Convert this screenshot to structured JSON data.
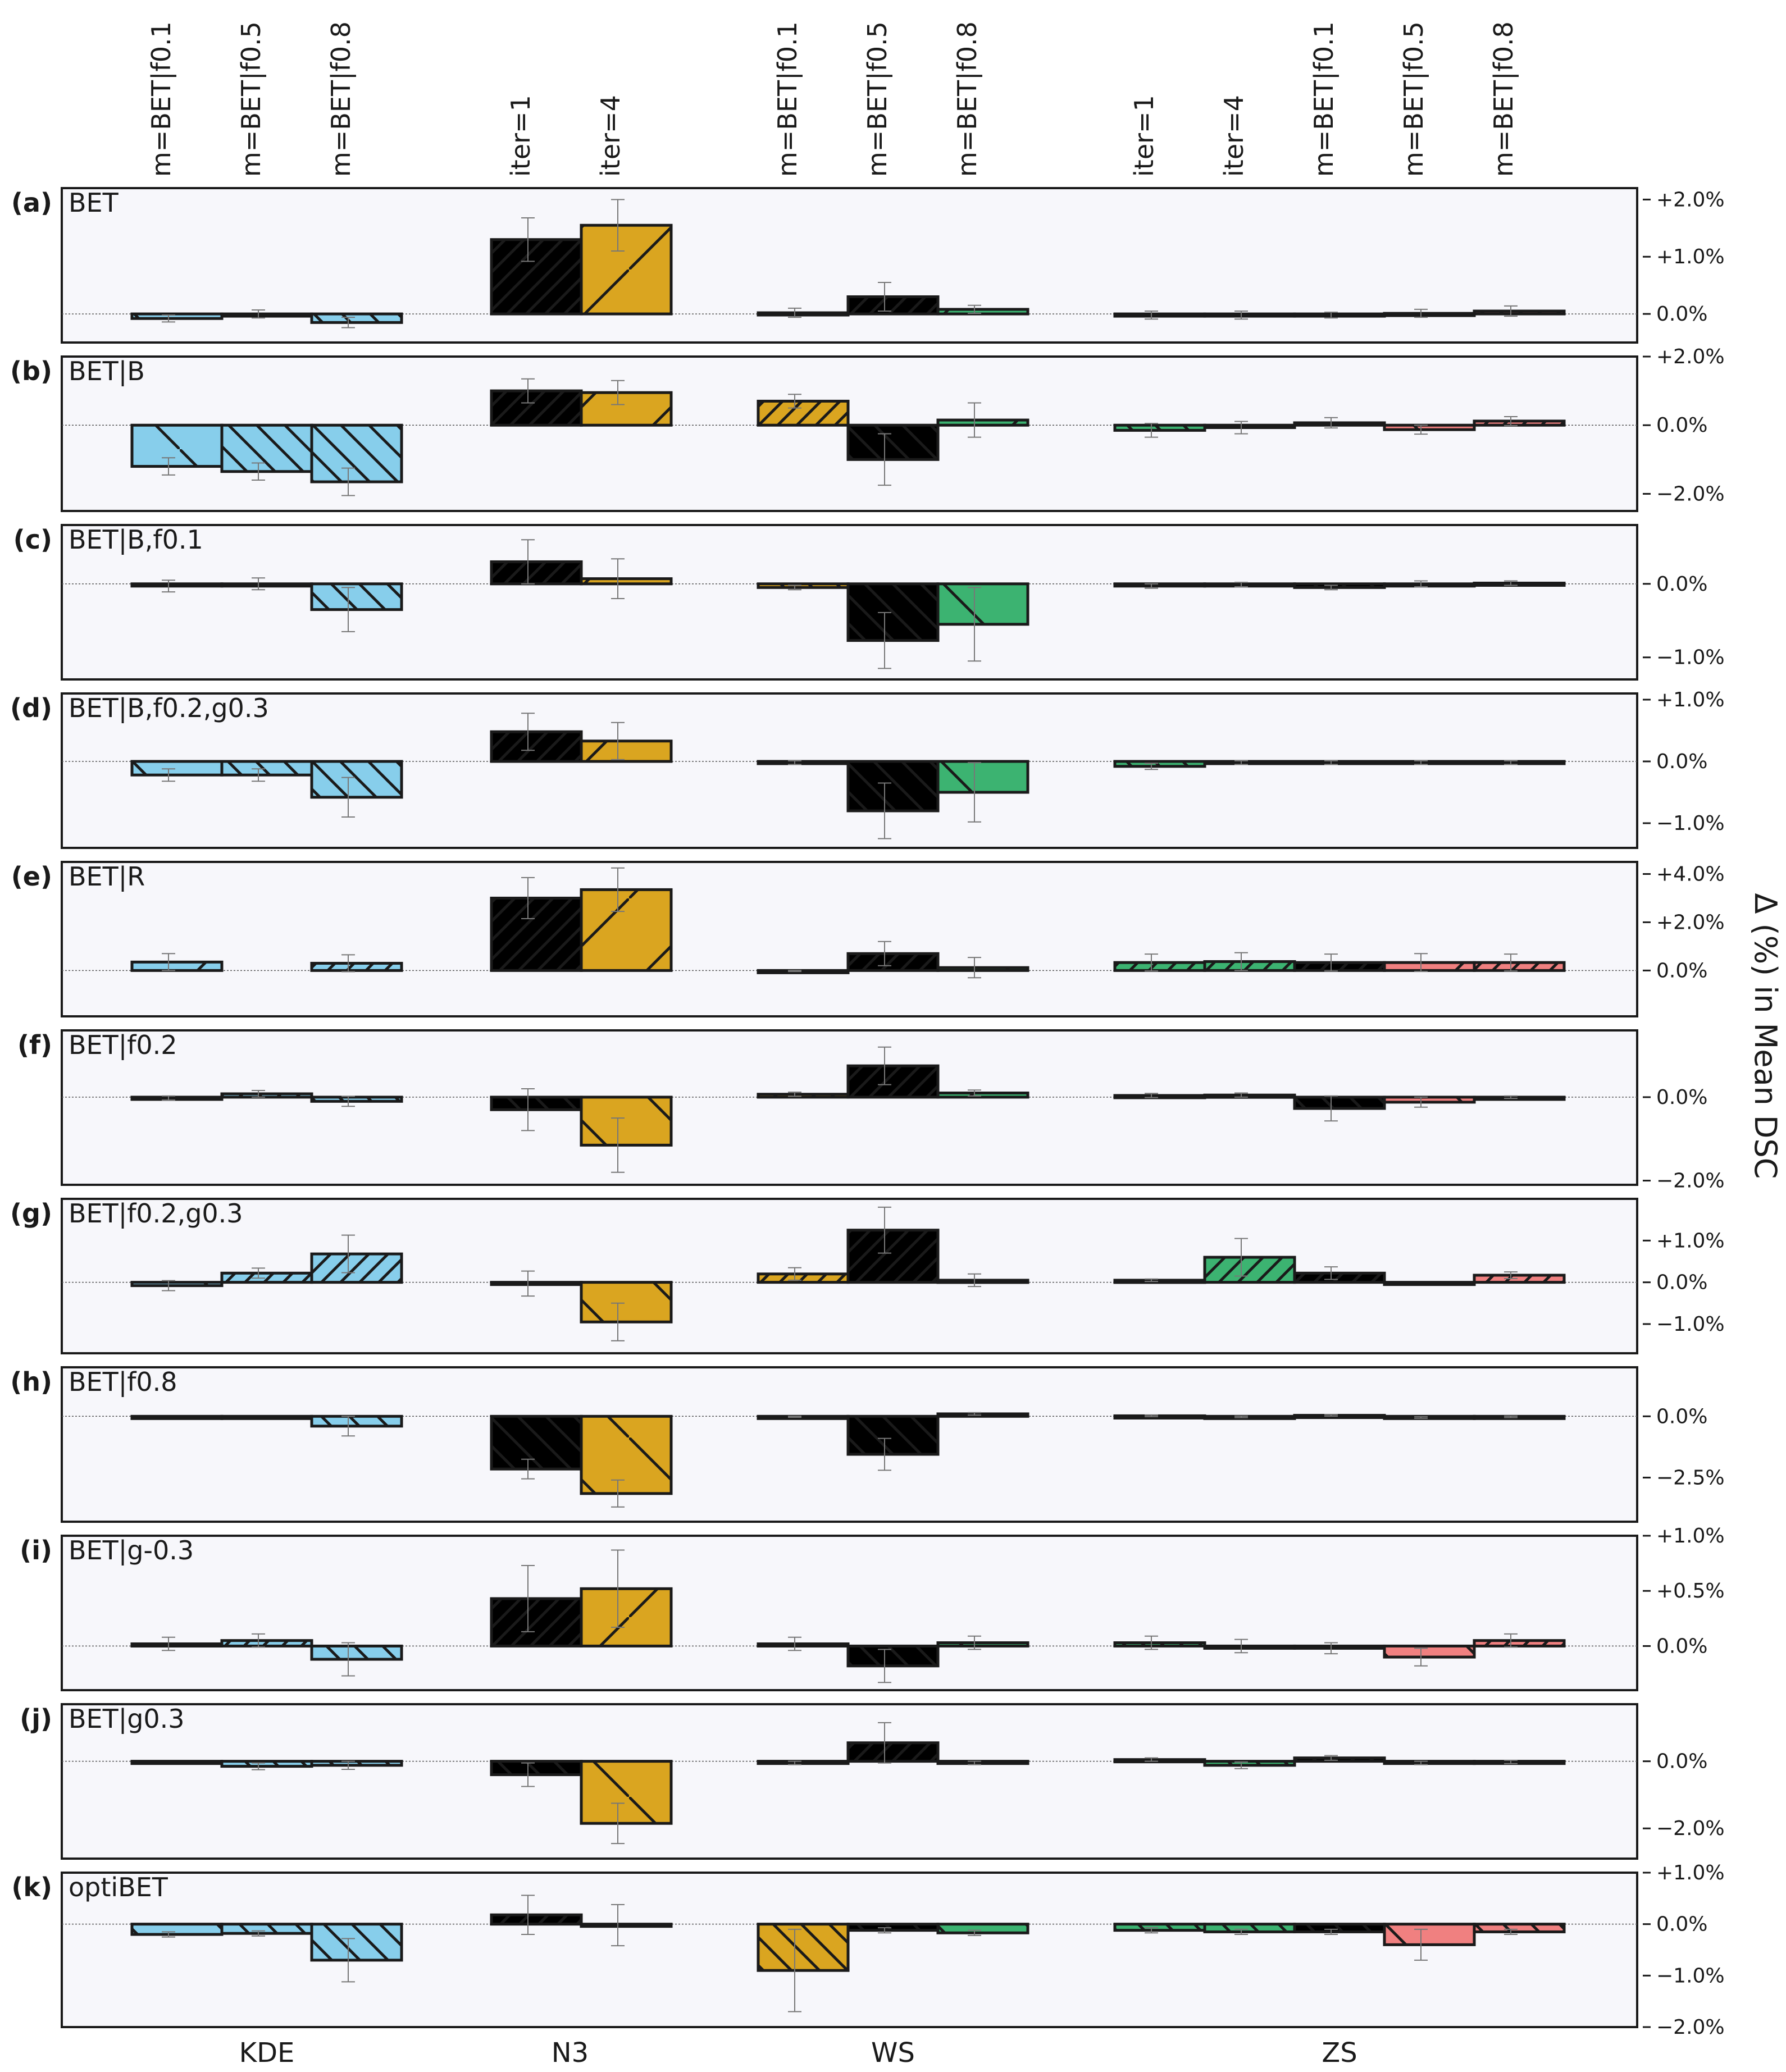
{
  "colors": {
    "KDE": "#87ceeb",
    "N3": "#daa520",
    "WS": "#3cb371",
    "ZS": "#f08080",
    "background": "#f7f7fb"
  },
  "chart_data": {
    "type": "bar",
    "ylabel": "Δ (%) in Mean DSC",
    "groups": [
      "KDE",
      "N3",
      "WS",
      "ZS"
    ],
    "top_labels": [
      "m=BET|f0.1",
      "m=BET|f0.5",
      "m=BET|f0.8",
      "iter=1",
      "iter=4",
      "m=BET|f0.1",
      "m=BET|f0.5",
      "m=BET|f0.8",
      "iter=1",
      "iter=4",
      "m=BET|f0.1",
      "m=BET|f0.5",
      "m=BET|f0.8"
    ],
    "bar_groups": [
      {
        "group": "KDE",
        "bars": 3,
        "start": 0
      },
      {
        "group": "N3",
        "bars": 2,
        "start": 4
      },
      {
        "group": "WS",
        "bars": 3,
        "start": 7
      },
      {
        "group": "ZS",
        "bars": 5,
        "start": 11
      }
    ],
    "panels": [
      {
        "letter": "(a)",
        "title": "BET",
        "ylim": [
          -0.5,
          2.2
        ],
        "ticks": [
          0,
          1,
          2
        ],
        "tick_labels": [
          "0.0%",
          "+1.0%",
          "+2.0%"
        ],
        "values": [
          -0.08,
          0,
          -0.15,
          1.3,
          1.55,
          0.02,
          0.3,
          0.08,
          -0.02,
          -0.02,
          -0.02,
          0.01,
          0.05
        ],
        "errors": [
          0.06,
          0.07,
          0.09,
          0.38,
          0.45,
          0.08,
          0.25,
          0.07,
          0.07,
          0.07,
          0.05,
          0.07,
          0.09
        ]
      },
      {
        "letter": "(b)",
        "title": "BET|B",
        "ylim": [
          -2.5,
          2.0
        ],
        "ticks": [
          -2,
          0,
          2
        ],
        "tick_labels": [
          "−2.0%",
          "0.0%",
          "+2.0%"
        ],
        "values": [
          -1.2,
          -1.35,
          -1.65,
          1.0,
          0.95,
          0.7,
          -1.0,
          0.15,
          -0.15,
          -0.07,
          0.07,
          -0.13,
          0.12
        ],
        "errors": [
          0.25,
          0.25,
          0.4,
          0.35,
          0.35,
          0.2,
          0.75,
          0.5,
          0.2,
          0.18,
          0.15,
          0.13,
          0.13
        ]
      },
      {
        "letter": "(c)",
        "title": "BET|B,f0.1",
        "ylim": [
          -1.3,
          0.8
        ],
        "ticks": [
          -1,
          0
        ],
        "tick_labels": [
          "−1.0%",
          "0.0%"
        ],
        "values": [
          -0.03,
          0,
          -0.35,
          0.3,
          0.07,
          -0.05,
          -0.77,
          -0.55,
          -0.03,
          -0.01,
          -0.05,
          0,
          0.01
        ],
        "errors": [
          0.08,
          0.08,
          0.3,
          0.3,
          0.27,
          0.03,
          0.38,
          0.5,
          0.03,
          0.03,
          0.03,
          0.04,
          0.03
        ]
      },
      {
        "letter": "(d)",
        "title": "BET|B,f0.2,g0.3",
        "ylim": [
          -1.4,
          1.1
        ],
        "ticks": [
          -1,
          0,
          1
        ],
        "tick_labels": [
          "−1.0%",
          "0.0%",
          "+1.0%"
        ],
        "values": [
          -0.22,
          -0.22,
          -0.58,
          0.48,
          0.33,
          -0.02,
          -0.8,
          -0.5,
          -0.08,
          -0.02,
          -0.02,
          -0.02,
          -0.02
        ],
        "errors": [
          0.1,
          0.1,
          0.32,
          0.3,
          0.3,
          0.03,
          0.45,
          0.48,
          0.05,
          0.03,
          0.03,
          0.03,
          0.03
        ]
      },
      {
        "letter": "(e)",
        "title": "BET|R",
        "ylim": [
          -1.9,
          4.5
        ],
        "ticks": [
          0,
          2,
          4
        ],
        "tick_labels": [
          "0.0%",
          "+2.0%",
          "+4.0%"
        ],
        "values": [
          0.35,
          0,
          0.3,
          3.0,
          3.35,
          -0.02,
          0.7,
          0.12,
          0.33,
          0.37,
          0.33,
          0.33,
          0.33
        ],
        "errors": [
          0.35,
          0,
          0.35,
          0.85,
          0.9,
          0.02,
          0.5,
          0.42,
          0.35,
          0.37,
          0.35,
          0.37,
          0.35
        ],
        "bar_present": [
          true,
          false,
          true,
          true,
          true,
          true,
          true,
          true,
          true,
          true,
          true,
          true,
          true
        ]
      },
      {
        "letter": "(f)",
        "title": "BET|f0.2",
        "ylim": [
          -2.1,
          1.6
        ],
        "ticks": [
          -2,
          0
        ],
        "tick_labels": [
          "−2.0%",
          "0.0%"
        ],
        "values": [
          -0.02,
          0.08,
          -0.1,
          -0.3,
          -1.15,
          0.07,
          0.75,
          0.1,
          0.04,
          0.05,
          -0.27,
          -0.12,
          0
        ],
        "errors": [
          0.05,
          0.08,
          0.12,
          0.5,
          0.65,
          0.05,
          0.45,
          0.07,
          0.05,
          0.05,
          0.3,
          0.12,
          0.03
        ]
      },
      {
        "letter": "(g)",
        "title": "BET|f0.2,g0.3",
        "ylim": [
          -1.7,
          2.0
        ],
        "ticks": [
          -1,
          0,
          1
        ],
        "tick_labels": [
          "−1.0%",
          "0.0%",
          "+1.0%"
        ],
        "values": [
          -0.08,
          0.22,
          0.68,
          -0.03,
          -0.95,
          0.2,
          1.25,
          0.05,
          0.05,
          0.6,
          0.22,
          0,
          0.17
        ],
        "errors": [
          0.12,
          0.12,
          0.45,
          0.3,
          0.45,
          0.15,
          0.55,
          0.15,
          0.03,
          0.45,
          0.15,
          0,
          0.08
        ]
      },
      {
        "letter": "(h)",
        "title": "BET|f0.8",
        "ylim": [
          -4.3,
          2.0
        ],
        "ticks": [
          -2.5,
          0
        ],
        "tick_labels": [
          "−2.5%",
          "0.0%"
        ],
        "values": [
          0,
          0,
          -0.4,
          -2.15,
          -3.15,
          -0.02,
          -1.55,
          0.1,
          0.02,
          -0.02,
          0.04,
          -0.05,
          -0.02
        ],
        "errors": [
          0,
          0,
          0.4,
          0.4,
          0.55,
          0.02,
          0.65,
          0.05,
          0.03,
          0.03,
          0.03,
          0.03,
          0.03
        ]
      },
      {
        "letter": "(i)",
        "title": "BET|g-0.3",
        "ylim": [
          -0.4,
          1.0
        ],
        "ticks": [
          0,
          0.5,
          1
        ],
        "tick_labels": [
          "0.0%",
          "+0.5%",
          "+1.0%"
        ],
        "values": [
          0.02,
          0.05,
          -0.12,
          0.43,
          0.52,
          0.02,
          -0.18,
          0.03,
          0.03,
          0,
          -0.02,
          -0.1,
          0.05
        ],
        "errors": [
          0.06,
          0.06,
          0.15,
          0.3,
          0.35,
          0.06,
          0.15,
          0.06,
          0.06,
          0.06,
          0.05,
          0.08,
          0.06
        ]
      },
      {
        "letter": "(j)",
        "title": "BET|g0.3",
        "ylim": [
          -2.9,
          1.7
        ],
        "ticks": [
          -2,
          0
        ],
        "tick_labels": [
          "−2.0%",
          "0.0%"
        ],
        "values": [
          0,
          -0.15,
          -0.12,
          -0.4,
          -1.85,
          -0.05,
          0.55,
          -0.05,
          0.05,
          -0.12,
          0.1,
          -0.05,
          -0.02
        ],
        "errors": [
          0,
          0.1,
          0.12,
          0.35,
          0.6,
          0.05,
          0.6,
          0.05,
          0.05,
          0.1,
          0.07,
          0.05,
          0.05
        ]
      },
      {
        "letter": "(k)",
        "title": "optiBET",
        "ylim": [
          -2.0,
          1.0
        ],
        "ticks": [
          -2,
          -1,
          0,
          1
        ],
        "tick_labels": [
          "−2.0%",
          "−1.0%",
          "0.0%",
          "+1.0%"
        ],
        "values": [
          -0.2,
          -0.18,
          -0.7,
          0.18,
          -0.02,
          -0.9,
          -0.12,
          -0.17,
          -0.12,
          -0.15,
          -0.15,
          -0.4,
          -0.15
        ],
        "errors": [
          0.05,
          0.05,
          0.42,
          0.38,
          0.4,
          0.8,
          0.05,
          0.05,
          0.05,
          0.05,
          0.05,
          0.3,
          0.05
        ]
      }
    ]
  }
}
